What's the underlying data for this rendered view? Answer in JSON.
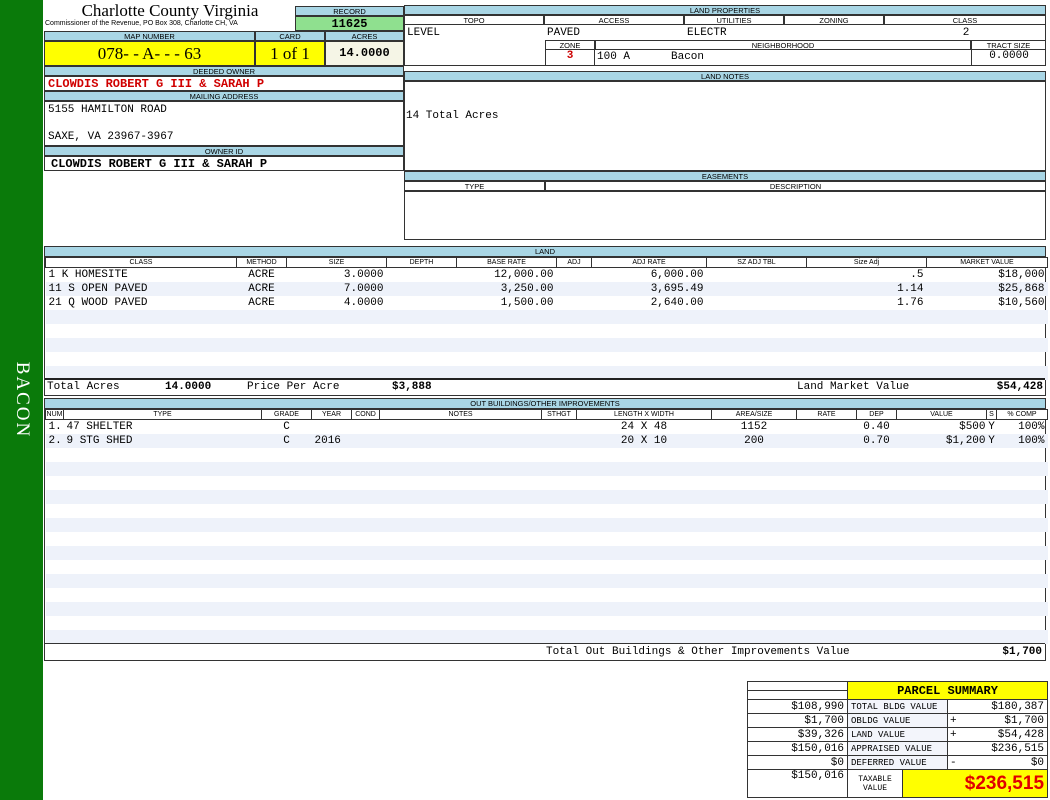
{
  "sidebar": {
    "label": "BACON",
    "color": "#0a7a0a"
  },
  "header": {
    "title": "Charlotte County Virginia",
    "subtitle": "Commissioner of the Revenue, PO Box 308, Charlotte CH, VA",
    "record_label": "RECORD",
    "record": "11625",
    "map_label": "MAP NUMBER",
    "map": "078- - A- - - 63",
    "card_label": "CARD",
    "card": "1 of 1",
    "acres_label": "ACRES",
    "acres": "14.0000"
  },
  "owner": {
    "deeded_label": "DEEDED OWNER",
    "deeded": "CLOWDIS ROBERT G III & SARAH P",
    "mailing_label": "MAILING ADDRESS",
    "address1": "5155 HAMILTON ROAD",
    "address2": "SAXE, VA 23967-3967",
    "owner_id_label": "OWNER ID",
    "owner_id": "CLOWDIS ROBERT G III & SARAH P"
  },
  "land_properties": {
    "label": "LAND PROPERTIES",
    "topo_label": "TOPO",
    "access_label": "ACCESS",
    "utilities_label": "UTILITIES",
    "zoning_label": "ZONING",
    "class_label": "CLASS",
    "topo": "LEVEL",
    "access": "PAVED",
    "utilities": "ELECTR",
    "zoning": "",
    "class": "2",
    "zone_label": "ZONE",
    "neighborhood_label": "NEIGHBORHOOD",
    "tract_label": "TRACT SIZE",
    "zone": "3",
    "neighborhood_code": "100 A",
    "neighborhood": "Bacon",
    "tract": "0.0000"
  },
  "land_notes": {
    "label": "LAND NOTES",
    "text": "14 Total Acres"
  },
  "easements": {
    "label": "EASEMENTS",
    "type_label": "TYPE",
    "desc_label": "DESCRIPTION"
  },
  "land": {
    "label": "LAND",
    "columns": [
      "CLASS",
      "METHOD",
      "SIZE",
      "DEPTH",
      "BASE RATE",
      "ADJ",
      "ADJ RATE",
      "SZ ADJ TBL",
      "Size Adj",
      "MARKET VALUE"
    ],
    "rows": [
      [
        "1 K HOMESITE",
        "ACRE",
        "3.0000",
        "",
        "12,000.00",
        "",
        "6,000.00",
        "",
        ".5",
        "$18,000"
      ],
      [
        "11 S OPEN PAVED",
        "ACRE",
        "7.0000",
        "",
        "3,250.00",
        "",
        "3,695.49",
        "",
        "1.14",
        "$25,868"
      ],
      [
        "21 Q WOOD PAVED",
        "ACRE",
        "4.0000",
        "",
        "1,500.00",
        "",
        "2,640.00",
        "",
        "1.76",
        "$10,560"
      ]
    ],
    "total_acres_label": "Total Acres",
    "total_acres": "14.0000",
    "price_label": "Price Per Acre",
    "price": "$3,888",
    "market_label": "Land Market Value",
    "market": "$54,428"
  },
  "outbuildings": {
    "label": "OUT BUILDINGS/OTHER IMPROVEMENTS",
    "columns": [
      "NUM",
      "TYPE",
      "GRADE",
      "YEAR",
      "COND",
      "NOTES",
      "STHGT",
      "LENGTH X WIDTH",
      "AREA/SIZE",
      "RATE",
      "DEP",
      "VALUE",
      "S",
      "% COMP"
    ],
    "rows": [
      [
        "1.",
        "47 SHELTER",
        "C",
        "",
        "",
        "",
        "",
        "24 X 48",
        "1152",
        "",
        "0.40",
        "$500",
        "Y",
        "100%"
      ],
      [
        "2.",
        "9 STG SHED",
        "C",
        "2016",
        "",
        "",
        "",
        "20 X 10",
        "200",
        "",
        "0.70",
        "$1,200",
        "Y",
        "100%"
      ]
    ],
    "total_label": "Total Out Buildings & Other Improvements Value",
    "total": "$1,700"
  },
  "summary": {
    "title": "PARCEL SUMMARY",
    "rows": [
      {
        "prev": "$108,990",
        "label": "TOTAL BLDG VALUE",
        "op": "",
        "value": "$180,387"
      },
      {
        "prev": "$1,700",
        "label": "OBLDG VALUE",
        "op": "+",
        "value": "$1,700"
      },
      {
        "prev": "$39,326",
        "label": "LAND VALUE",
        "op": "+",
        "value": "$54,428"
      },
      {
        "prev": "$150,016",
        "label": "APPRAISED VALUE",
        "op": "",
        "value": "$236,515"
      },
      {
        "prev": "$0",
        "label": "DEFERRED VALUE",
        "op": "-",
        "value": "$0"
      }
    ],
    "taxable_prev": "$150,016",
    "taxable_label": "TAXABLE VALUE",
    "taxable": "$236,515"
  }
}
